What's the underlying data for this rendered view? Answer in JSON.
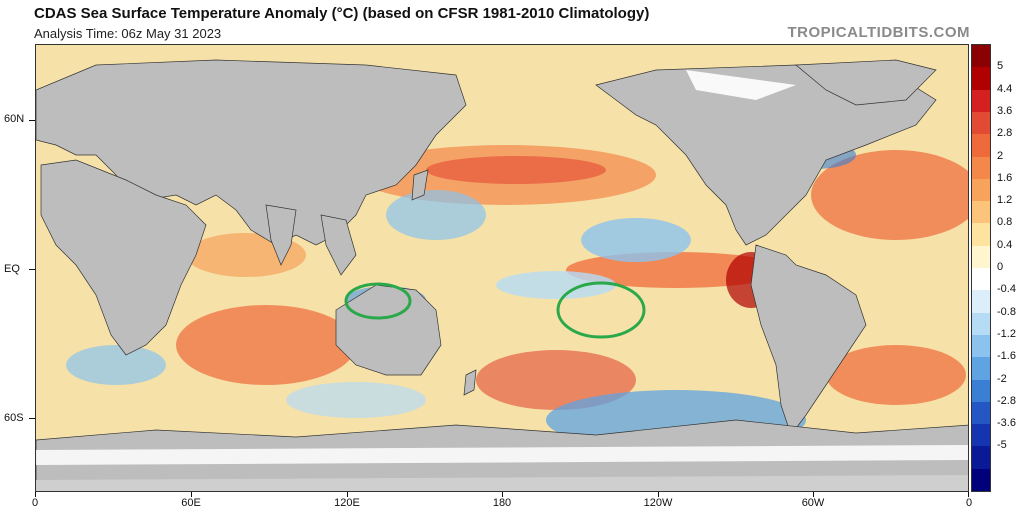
{
  "header": {
    "title": "CDAS Sea Surface Temperature Anomaly (°C) (based on CFSR 1981-2010 Climatology)",
    "subtitle": "Analysis Time: 06z May 31 2023",
    "watermark": "TROPICALTIDBITS.COM"
  },
  "axes": {
    "lat_labels": [
      "60N",
      "EQ",
      "60S"
    ],
    "lon_labels": [
      "0",
      "60E",
      "120E",
      "180",
      "120W",
      "60W",
      "0"
    ]
  },
  "colorbar": {
    "labels": [
      "5",
      "4.4",
      "3.6",
      "2.8",
      "2",
      "1.6",
      "1.2",
      "0.8",
      "0.4",
      "0",
      "-0.4",
      "-0.8",
      "-1.2",
      "-1.6",
      "-2",
      "-2.8",
      "-3.6",
      "-5"
    ],
    "colors": [
      "#8b0000",
      "#b00000",
      "#d42020",
      "#e34a33",
      "#ef6a3a",
      "#f4874a",
      "#f7a35c",
      "#fbc47a",
      "#fde2a0",
      "#fff6d0",
      "#ffffff",
      "#dceefa",
      "#b6dcf5",
      "#8cc3ee",
      "#5fa3e2",
      "#3b7fd4",
      "#2457c4",
      "#1434b0",
      "#0a1a96",
      "#00007a"
    ]
  },
  "annotations": {
    "circle_1": "green-ellipse-north-australia",
    "circle_2": "green-ellipse-south-pacific"
  },
  "colors": {
    "land": "#bdbdbd",
    "ice": "#ffffff",
    "ring": "#2aa84a"
  }
}
